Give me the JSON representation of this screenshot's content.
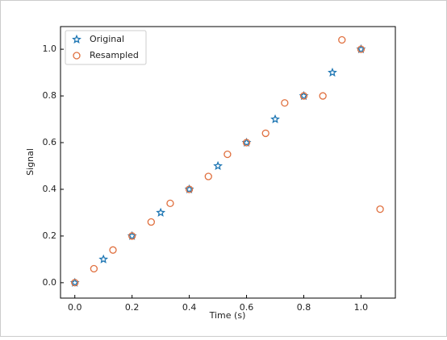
{
  "chart_data": {
    "type": "scatter",
    "xlabel": "Time (s)",
    "ylabel": "Signal",
    "xlim": [
      -0.05,
      1.12
    ],
    "ylim": [
      -0.066,
      1.097
    ],
    "xticks": [
      {
        "value": 0,
        "label": "0.0"
      },
      {
        "value": 0.2,
        "label": "0.2"
      },
      {
        "value": 0.4,
        "label": "0.4"
      },
      {
        "value": 0.6,
        "label": "0.6"
      },
      {
        "value": 0.8,
        "label": "0.8"
      },
      {
        "value": 1,
        "label": "1.0"
      }
    ],
    "yticks": [
      {
        "value": 0,
        "label": "0.0"
      },
      {
        "value": 0.2,
        "label": "0.2"
      },
      {
        "value": 0.4,
        "label": "0.4"
      },
      {
        "value": 0.6,
        "label": "0.6"
      },
      {
        "value": 0.8,
        "label": "0.8"
      },
      {
        "value": 1,
        "label": "1.0"
      }
    ],
    "legend": "upper left",
    "series": [
      {
        "name": "Original",
        "color": "#1f77b4",
        "marker": "star",
        "x": [
          0,
          0.1,
          0.2,
          0.3,
          0.4,
          0.5,
          0.6,
          0.7,
          0.8,
          0.9,
          1.0
        ],
        "values": [
          0,
          0.1,
          0.2,
          0.3,
          0.4,
          0.5,
          0.6,
          0.7,
          0.8,
          0.9,
          1.0
        ]
      },
      {
        "name": "Resampled",
        "color": "#e0703f",
        "marker": "circle",
        "x": [
          0,
          0.0667,
          0.1333,
          0.2,
          0.2667,
          0.3333,
          0.4,
          0.4667,
          0.5333,
          0.6,
          0.6667,
          0.7333,
          0.8,
          0.8667,
          0.9333,
          1.0,
          1.0667
        ],
        "values": [
          0,
          0.06,
          0.14,
          0.2,
          0.26,
          0.34,
          0.4,
          0.455,
          0.55,
          0.6,
          0.64,
          0.77,
          0.8,
          0.8,
          1.04,
          1.0,
          0.315
        ]
      }
    ]
  }
}
